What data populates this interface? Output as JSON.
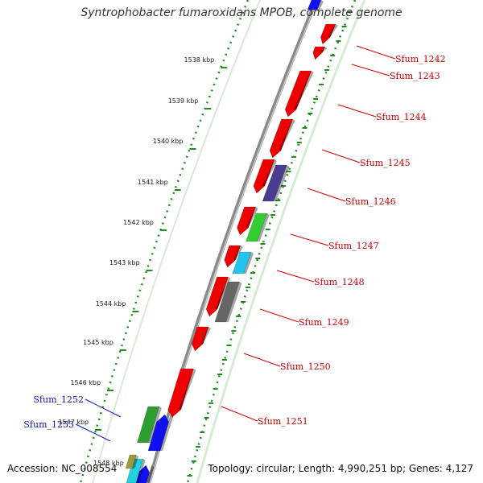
{
  "title": "Syntrophobacter fumaroxidans MPOB, complete genome",
  "footer": {
    "accession": "Accession: NC_008554",
    "summary": "Topology: circular; Length: 4,990,251 bp; Genes: 4,127"
  },
  "colors": {
    "forward_label": "#cc0000",
    "reverse_label": "#0a16b8",
    "backbone": "#8a8a8a",
    "tick_track": "#1e8c1e",
    "light_track": "#d4ecd4"
  },
  "scale": {
    "ticks": [
      {
        "label": "1538 kbp"
      },
      {
        "label": "1539 kbp"
      },
      {
        "label": "1540 kbp"
      },
      {
        "label": "1541 kbp"
      },
      {
        "label": "1542 kbp"
      },
      {
        "label": "1543 kbp"
      },
      {
        "label": "1544 kbp"
      },
      {
        "label": "1545 kbp"
      },
      {
        "label": "1546 kbp"
      },
      {
        "label": "1547 kbp"
      }
    ],
    "partial_label": "1548 kbp"
  },
  "gene_labels": [
    {
      "name": "Sfum_1242",
      "strand": "forward"
    },
    {
      "name": "Sfum_1243",
      "strand": "forward"
    },
    {
      "name": "Sfum_1244",
      "strand": "forward"
    },
    {
      "name": "Sfum_1245",
      "strand": "forward"
    },
    {
      "name": "Sfum_1246",
      "strand": "forward"
    },
    {
      "name": "Sfum_1247",
      "strand": "forward"
    },
    {
      "name": "Sfum_1248",
      "strand": "forward"
    },
    {
      "name": "Sfum_1249",
      "strand": "forward"
    },
    {
      "name": "Sfum_1250",
      "strand": "forward"
    },
    {
      "name": "Sfum_1251",
      "strand": "forward"
    },
    {
      "name": "Sfum_1252",
      "strand": "reverse"
    },
    {
      "name": "Sfum_1253",
      "strand": "reverse"
    }
  ],
  "features": [
    {
      "name": "forward-gene-1242",
      "color": "#ee0000"
    },
    {
      "name": "forward-gene-1243",
      "color": "#ee0000"
    },
    {
      "name": "forward-gene-1244",
      "color": "#ee0000"
    },
    {
      "name": "forward-gene-1245",
      "color": "#ee0000"
    },
    {
      "name": "forward-gene-1246",
      "color": "#ee0000"
    },
    {
      "name": "forward-gene-1247",
      "color": "#ee0000"
    },
    {
      "name": "forward-gene-1248",
      "color": "#ee0000"
    },
    {
      "name": "forward-gene-1249",
      "color": "#ee0000"
    },
    {
      "name": "forward-gene-1250",
      "color": "#ee0000"
    },
    {
      "name": "forward-gene-1251",
      "color": "#ee0000"
    },
    {
      "name": "cog-feature-purple",
      "color": "#4a3c90"
    },
    {
      "name": "cog-feature-green",
      "color": "#33cc33"
    },
    {
      "name": "cog-feature-cyan",
      "color": "#22c4ee"
    },
    {
      "name": "cog-feature-gray",
      "color": "#666666"
    },
    {
      "name": "cog-feature-darkgreen",
      "color": "#2e9e2e"
    },
    {
      "name": "reverse-gene-1252",
      "color": "#1010ee"
    },
    {
      "name": "reverse-gene-1253",
      "color": "#1010ee"
    },
    {
      "name": "reverse-gene-top",
      "color": "#1010ee"
    },
    {
      "name": "cog-feature-cyan-bottom",
      "color": "#22d0e0"
    },
    {
      "name": "cog-feature-olive-bottom",
      "color": "#9a9a3a"
    }
  ]
}
